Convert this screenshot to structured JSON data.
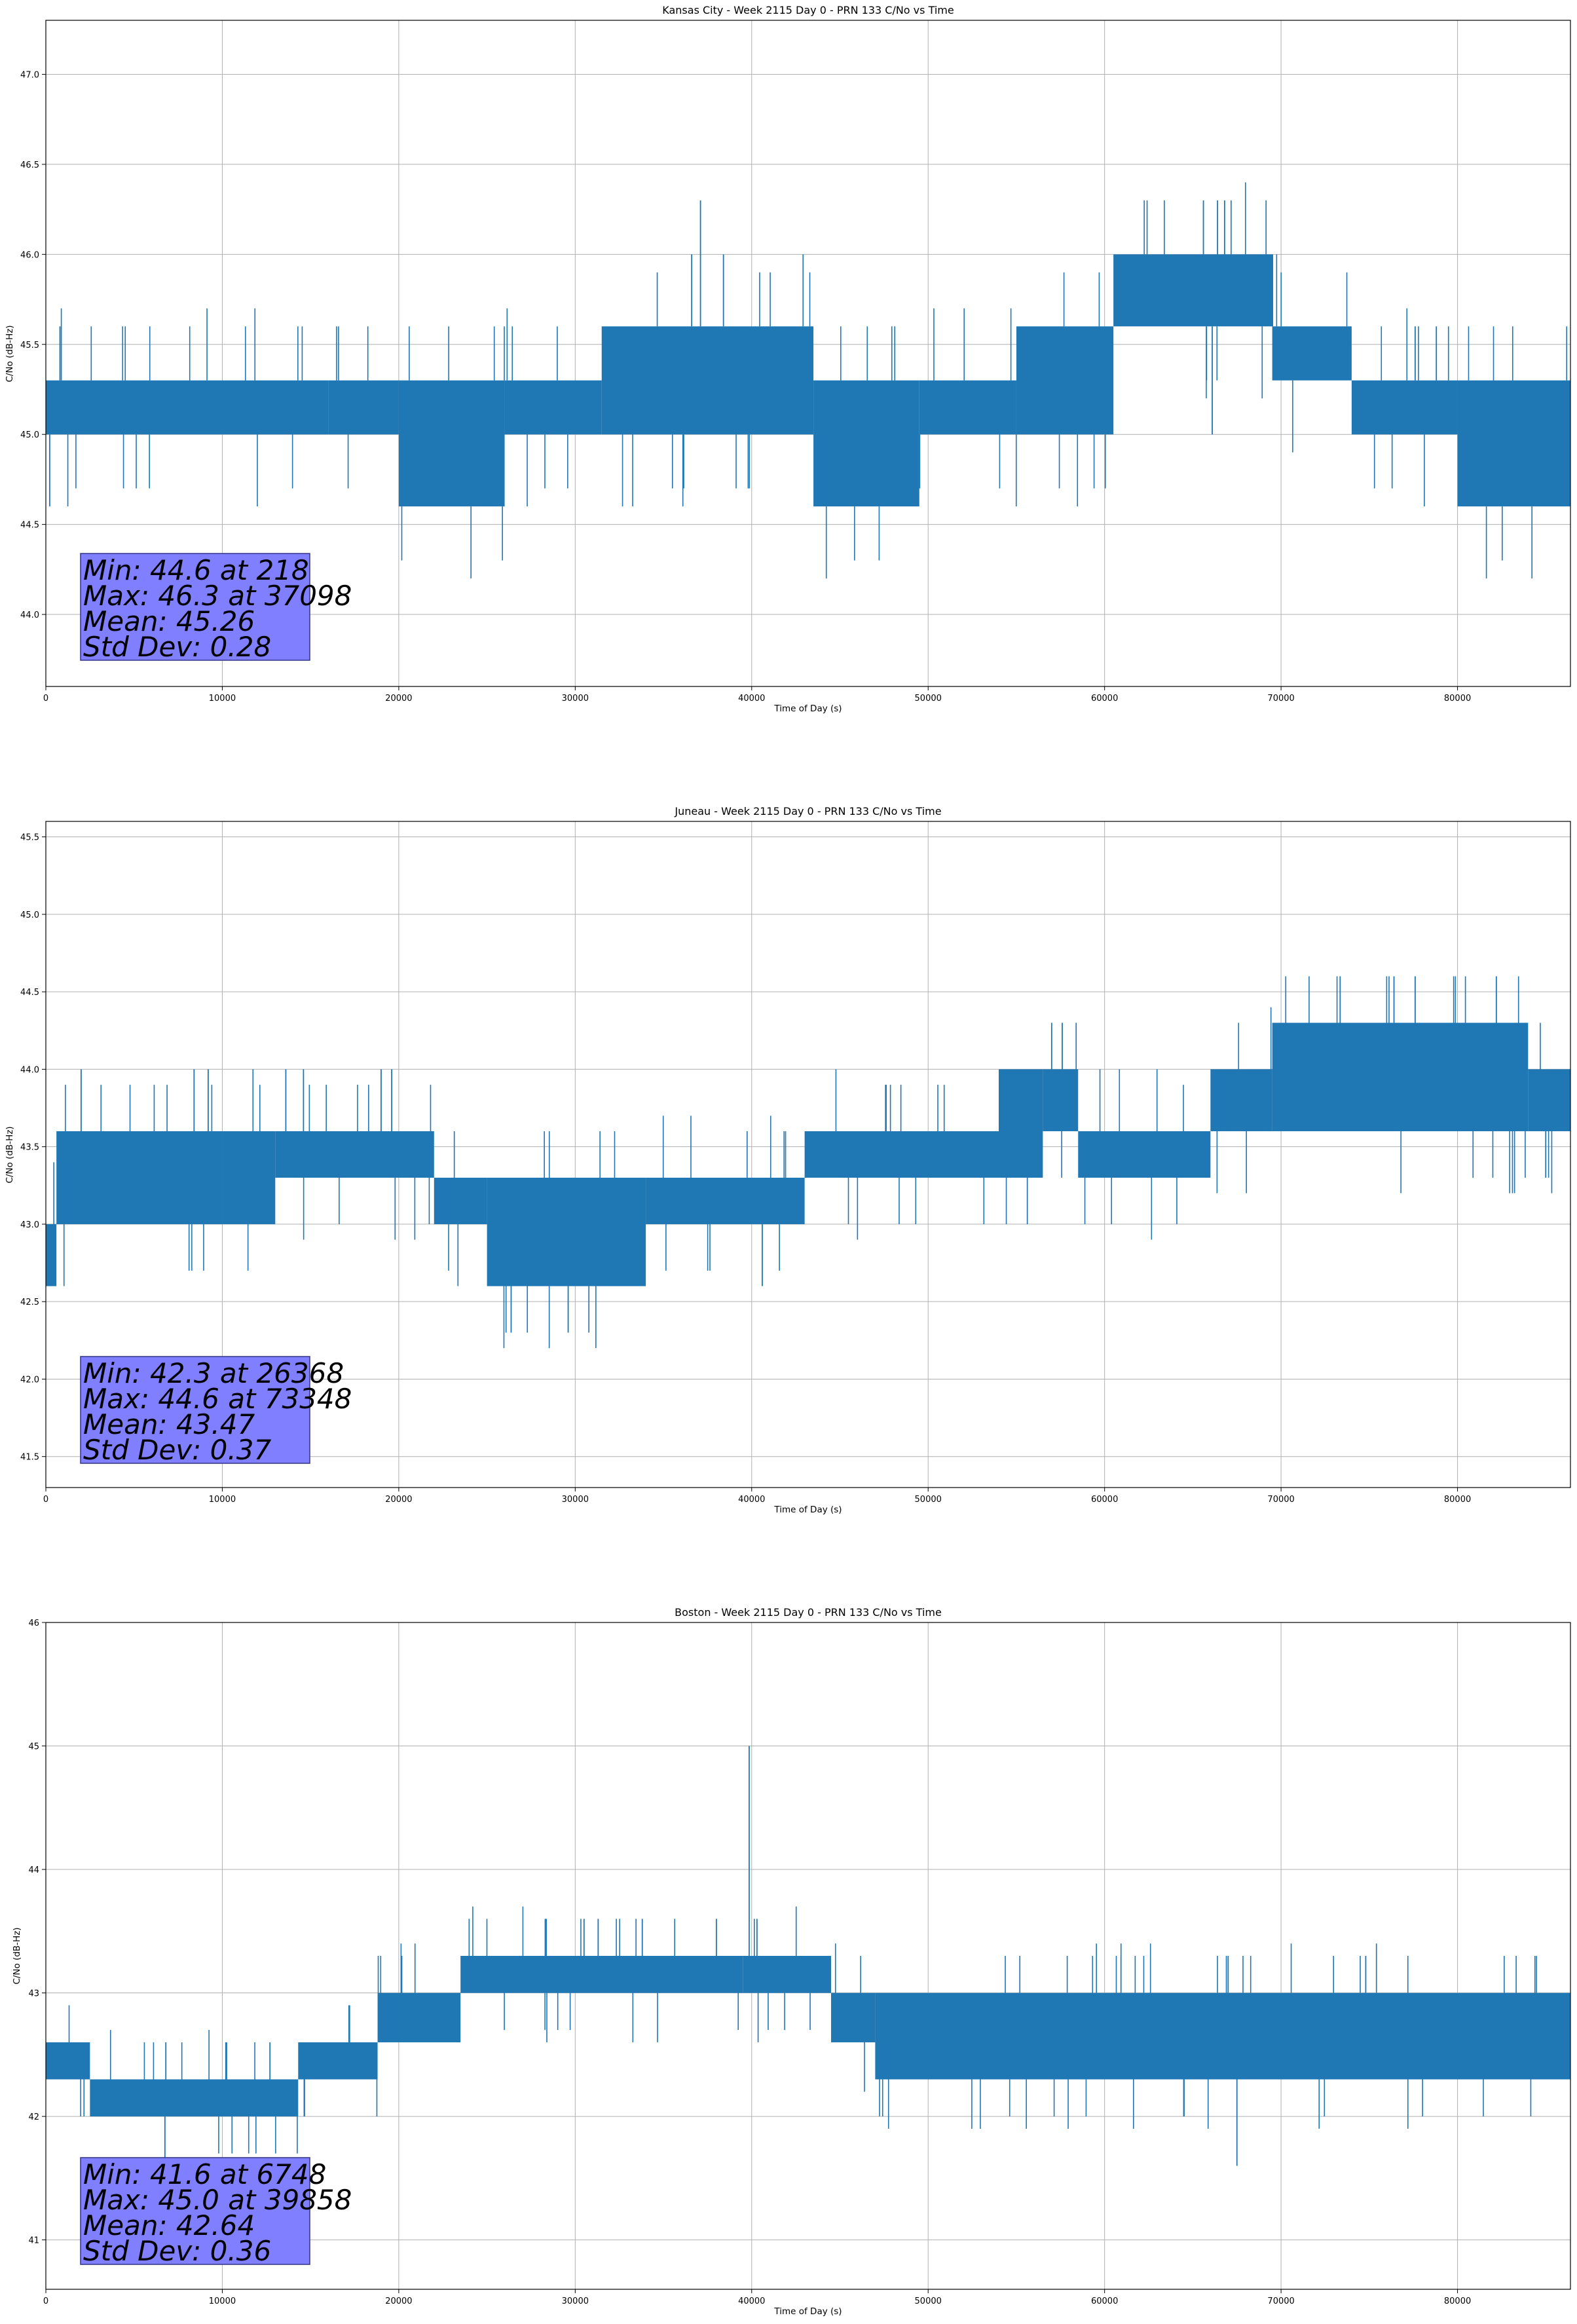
{
  "chart_data": [
    {
      "type": "line",
      "title": "Kansas City - Week 2115 Day 0 - PRN 133 C/No vs Time",
      "xlabel": "Time of Day (s)",
      "ylabel": "C/No (dB-Hz)",
      "xlim": [
        0,
        86400
      ],
      "ylim": [
        43.6,
        47.3
      ],
      "xticks": [
        0,
        10000,
        20000,
        30000,
        40000,
        50000,
        60000,
        70000,
        80000
      ],
      "yticks": [
        44.0,
        44.5,
        45.0,
        45.5,
        46.0,
        46.5,
        47.0
      ],
      "ytick_decimals": 1,
      "grid": true,
      "color": "#1f77b4",
      "series": [
        {
          "name": "C/No",
          "segments": [
            {
              "x0": 0,
              "x1": 3600,
              "low": 45.0,
              "high": 45.3
            },
            {
              "x0": 3600,
              "x1": 16000,
              "low": 45.0,
              "high": 45.3
            },
            {
              "x0": 16000,
              "x1": 20000,
              "low": 45.0,
              "high": 45.3
            },
            {
              "x0": 20000,
              "x1": 26000,
              "low": 44.6,
              "high": 45.3
            },
            {
              "x0": 26000,
              "x1": 31500,
              "low": 45.0,
              "high": 45.3
            },
            {
              "x0": 31500,
              "x1": 43500,
              "low": 45.0,
              "high": 45.6
            },
            {
              "x0": 43500,
              "x1": 49500,
              "low": 44.6,
              "high": 45.3
            },
            {
              "x0": 49500,
              "x1": 55000,
              "low": 45.0,
              "high": 45.3
            },
            {
              "x0": 55000,
              "x1": 60500,
              "low": 45.0,
              "high": 45.6
            },
            {
              "x0": 60500,
              "x1": 69500,
              "low": 45.6,
              "high": 46.0
            },
            {
              "x0": 69500,
              "x1": 74000,
              "low": 45.3,
              "high": 45.6
            },
            {
              "x0": 74000,
              "x1": 80000,
              "low": 45.0,
              "high": 45.3
            },
            {
              "x0": 80000,
              "x1": 86400,
              "low": 44.6,
              "high": 45.3
            }
          ],
          "spikes": [
            {
              "x": 218,
              "value": 44.6
            },
            {
              "x": 800,
              "value": 45.6
            },
            {
              "x": 37098,
              "value": 46.3
            },
            {
              "x": 36600,
              "value": 46.0
            },
            {
              "x": 38400,
              "value": 46.0
            },
            {
              "x": 65600,
              "value": 46.3
            },
            {
              "x": 66400,
              "value": 46.3
            },
            {
              "x": 66800,
              "value": 46.3
            },
            {
              "x": 66100,
              "value": 45.0
            },
            {
              "x": 77600,
              "value": 45.6
            },
            {
              "x": 78800,
              "value": 45.6
            }
          ]
        }
      ],
      "stats": {
        "min": "Min: 44.6 at 218",
        "max": "Max: 46.3 at 37098",
        "mean": "Mean: 45.26",
        "std": "Std Dev: 0.28"
      }
    },
    {
      "type": "line",
      "title": "Juneau - Week 2115 Day 0 - PRN 133 C/No vs Time",
      "xlabel": "Time of Day (s)",
      "ylabel": "C/No (dB-Hz)",
      "xlim": [
        0,
        86400
      ],
      "ylim": [
        41.3,
        45.6
      ],
      "xticks": [
        0,
        10000,
        20000,
        30000,
        40000,
        50000,
        60000,
        70000,
        80000
      ],
      "yticks": [
        41.5,
        42.0,
        42.5,
        43.0,
        43.5,
        44.0,
        44.5,
        45.0,
        45.5
      ],
      "ytick_decimals": 1,
      "grid": true,
      "color": "#1f77b4",
      "series": [
        {
          "name": "C/No",
          "segments": [
            {
              "x0": 0,
              "x1": 600,
              "low": 42.6,
              "high": 43.0
            },
            {
              "x0": 600,
              "x1": 10000,
              "low": 43.0,
              "high": 43.6
            },
            {
              "x0": 10000,
              "x1": 13000,
              "low": 43.0,
              "high": 43.6
            },
            {
              "x0": 13000,
              "x1": 22000,
              "low": 43.3,
              "high": 43.6
            },
            {
              "x0": 22000,
              "x1": 25000,
              "low": 43.0,
              "high": 43.3
            },
            {
              "x0": 25000,
              "x1": 34000,
              "low": 42.6,
              "high": 43.3
            },
            {
              "x0": 34000,
              "x1": 43000,
              "low": 43.0,
              "high": 43.3
            },
            {
              "x0": 43000,
              "x1": 54000,
              "low": 43.3,
              "high": 43.6
            },
            {
              "x0": 54000,
              "x1": 56500,
              "low": 43.3,
              "high": 44.0
            },
            {
              "x0": 56500,
              "x1": 58500,
              "low": 43.6,
              "high": 44.0
            },
            {
              "x0": 58500,
              "x1": 66000,
              "low": 43.3,
              "high": 43.6
            },
            {
              "x0": 66000,
              "x1": 69500,
              "low": 43.6,
              "high": 44.0
            },
            {
              "x0": 69500,
              "x1": 84000,
              "low": 43.6,
              "high": 44.3
            },
            {
              "x0": 84000,
              "x1": 86400,
              "low": 43.6,
              "high": 44.0
            }
          ],
          "spikes": [
            {
              "x": 2000,
              "value": 44.0
            },
            {
              "x": 8400,
              "value": 44.0
            },
            {
              "x": 9200,
              "value": 44.0
            },
            {
              "x": 13600,
              "value": 44.0
            },
            {
              "x": 14600,
              "value": 44.0
            },
            {
              "x": 19000,
              "value": 44.0
            },
            {
              "x": 19600,
              "value": 44.0
            },
            {
              "x": 26368,
              "value": 42.3
            },
            {
              "x": 29600,
              "value": 42.3
            },
            {
              "x": 40600,
              "value": 42.6
            },
            {
              "x": 57000,
              "value": 44.3
            },
            {
              "x": 57600,
              "value": 44.3
            },
            {
              "x": 73348,
              "value": 44.6
            },
            {
              "x": 76400,
              "value": 44.6
            },
            {
              "x": 77600,
              "value": 44.6
            },
            {
              "x": 82200,
              "value": 44.6
            },
            {
              "x": 85000,
              "value": 43.3
            }
          ]
        }
      ],
      "stats": {
        "min": "Min: 42.3 at 26368",
        "max": "Max: 44.6 at 73348",
        "mean": "Mean: 43.47",
        "std": "Std Dev: 0.37"
      }
    },
    {
      "type": "line",
      "title": "Boston - Week 2115 Day 0 - PRN 133 C/No vs Time",
      "xlabel": "Time of Day (s)",
      "ylabel": "C/No (dB-Hz)",
      "xlim": [
        0,
        86400
      ],
      "ylim": [
        40.6,
        46.0
      ],
      "xticks": [
        0,
        10000,
        20000,
        30000,
        40000,
        50000,
        60000,
        70000,
        80000
      ],
      "yticks": [
        41,
        42,
        43,
        44,
        45,
        46
      ],
      "ytick_decimals": 0,
      "grid": true,
      "color": "#1f77b4",
      "series": [
        {
          "name": "C/No",
          "segments": [
            {
              "x0": 0,
              "x1": 2500,
              "low": 42.3,
              "high": 42.6
            },
            {
              "x0": 2500,
              "x1": 14300,
              "low": 42.0,
              "high": 42.3
            },
            {
              "x0": 14300,
              "x1": 18800,
              "low": 42.3,
              "high": 42.6
            },
            {
              "x0": 18800,
              "x1": 23500,
              "low": 42.6,
              "high": 43.0
            },
            {
              "x0": 23500,
              "x1": 39500,
              "low": 43.0,
              "high": 43.3
            },
            {
              "x0": 39500,
              "x1": 44500,
              "low": 43.0,
              "high": 43.3
            },
            {
              "x0": 44500,
              "x1": 47000,
              "low": 42.6,
              "high": 43.0
            },
            {
              "x0": 47000,
              "x1": 86400,
              "low": 42.3,
              "high": 43.0
            }
          ],
          "spikes": [
            {
              "x": 6748,
              "value": 41.6
            },
            {
              "x": 6800,
              "value": 42.6
            },
            {
              "x": 10200,
              "value": 42.6
            },
            {
              "x": 12700,
              "value": 42.6
            },
            {
              "x": 28300,
              "value": 43.6
            },
            {
              "x": 30500,
              "value": 43.6
            },
            {
              "x": 31300,
              "value": 43.6
            },
            {
              "x": 33800,
              "value": 43.6
            },
            {
              "x": 38000,
              "value": 43.6
            },
            {
              "x": 39858,
              "value": 45.0
            },
            {
              "x": 40300,
              "value": 43.6
            },
            {
              "x": 67500,
              "value": 41.6
            },
            {
              "x": 67000,
              "value": 43.3
            },
            {
              "x": 74800,
              "value": 43.3
            }
          ]
        }
      ],
      "stats": {
        "min": "Min: 41.6 at 6748",
        "max": "Max: 45.0 at 39858",
        "mean": "Mean: 42.64",
        "std": "Std Dev: 0.36"
      }
    }
  ]
}
